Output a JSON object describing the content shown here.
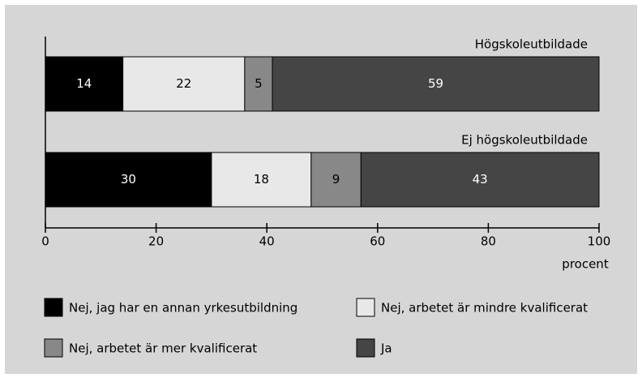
{
  "chart_data": {
    "type": "stacked_barh",
    "categories": [
      "Högskoleutbildade",
      "Ej högskoleutbildade"
    ],
    "series": [
      {
        "name": "Nej, jag har en annan yrkesutbildning",
        "color": "#000000",
        "values": [
          14,
          30
        ]
      },
      {
        "name": "Nej, arbetet är mindre kvalificerat",
        "color": "#e8e8e8",
        "values": [
          22,
          18
        ]
      },
      {
        "name": "Nej, arbetet är mer kvalificerat",
        "color": "#888888",
        "values": [
          5,
          9
        ]
      },
      {
        "name": "Ja",
        "color": "#454545",
        "values": [
          59,
          43
        ]
      }
    ],
    "xlim": [
      0,
      100
    ],
    "xticks": [
      0,
      20,
      40,
      60,
      80,
      100
    ],
    "xlabel": "procent"
  }
}
